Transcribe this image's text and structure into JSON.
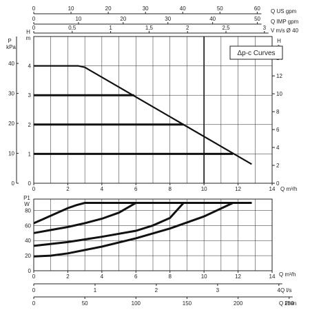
{
  "chart_data": [
    {
      "type": "line",
      "legend_label": "Δp-c Curves",
      "legend_position": "top-right",
      "grid": true,
      "x_label": "Q m³/h",
      "x_ticks": [
        "0",
        "2",
        "4",
        "6",
        "8",
        "10",
        "12",
        "14"
      ],
      "xlim": [
        0,
        14
      ],
      "left_outer_axis": {
        "unit_top": "P",
        "unit_bottom": "kPa",
        "ticks": [
          "0",
          "10",
          "20",
          "30",
          "40"
        ],
        "ylim": [
          0,
          49
        ]
      },
      "left_inner_axis": {
        "label": "H",
        "unit": "m",
        "ticks": [
          "0",
          "1",
          "2",
          "3",
          "4"
        ],
        "ylim": [
          0,
          5
        ]
      },
      "right_axis": {
        "label": "H",
        "unit": "ft",
        "ticks": [
          "0",
          "2",
          "4",
          "6",
          "8",
          "10",
          "12",
          "14"
        ],
        "ylim": [
          0,
          16.4
        ]
      },
      "top_axes": [
        {
          "label": "Q US gpm",
          "ticks": [
            "0",
            "10",
            "20",
            "30",
            "40",
            "50",
            "60"
          ],
          "max": 64
        },
        {
          "label": "Q IMP gpm",
          "ticks": [
            "0",
            "10",
            "20",
            "30",
            "40",
            "50"
          ],
          "max": 53.3
        },
        {
          "label": "V m/s Ø 40",
          "ticks": [
            "0",
            "0,5",
            "1",
            "1,5",
            "2",
            "2,5",
            "3"
          ],
          "max": 3.1
        }
      ],
      "series": [
        {
          "x": [
            0,
            2.6,
            3.0,
            12.8
          ],
          "y": [
            4.0,
            4.0,
            3.95,
            0.65
          ]
        },
        {
          "x": [
            0,
            5.9
          ],
          "y": [
            3.0,
            3.0
          ]
        },
        {
          "x": [
            0,
            8.8
          ],
          "y": [
            2.0,
            2.0
          ]
        },
        {
          "x": [
            0,
            11.7
          ],
          "y": [
            1.0,
            1.0
          ]
        }
      ]
    },
    {
      "type": "line",
      "grid": true,
      "y_label": "P1",
      "y_unit": "W",
      "y_ticks": [
        "0",
        "20",
        "40",
        "60",
        "80"
      ],
      "ylim": [
        0,
        95
      ],
      "x_label": "Q m³/h",
      "x_ticks": [
        "0",
        "2",
        "4",
        "6",
        "8",
        "10",
        "12",
        "14"
      ],
      "xlim": [
        0,
        14
      ],
      "bottom_axes": [
        {
          "label": "Q l/s",
          "ticks": [
            "0",
            "1",
            "2",
            "3",
            "4"
          ],
          "max": 3.89
        },
        {
          "label": "Q l/min",
          "ticks": [
            "0",
            "50",
            "100",
            "150",
            "200",
            "250"
          ],
          "max": 233.3
        }
      ],
      "series": [
        {
          "x": [
            0,
            0.5,
            1,
            1.5,
            2,
            2.5,
            3.0,
            12.8
          ],
          "y": [
            63,
            68,
            73,
            78,
            83,
            87,
            90,
            90
          ]
        },
        {
          "x": [
            0,
            1,
            2,
            3,
            4,
            5,
            6.0,
            12.8
          ],
          "y": [
            50,
            54,
            58,
            63,
            69,
            77,
            90,
            90
          ]
        },
        {
          "x": [
            0,
            2,
            4,
            6,
            7,
            8,
            8.8,
            12.8
          ],
          "y": [
            33,
            38,
            45,
            53,
            60,
            70,
            90,
            90
          ]
        },
        {
          "x": [
            0,
            1,
            2,
            4,
            6,
            8,
            10,
            11.7,
            12.8
          ],
          "y": [
            19,
            20,
            23,
            32,
            43,
            56,
            72,
            90,
            90
          ]
        }
      ]
    }
  ]
}
